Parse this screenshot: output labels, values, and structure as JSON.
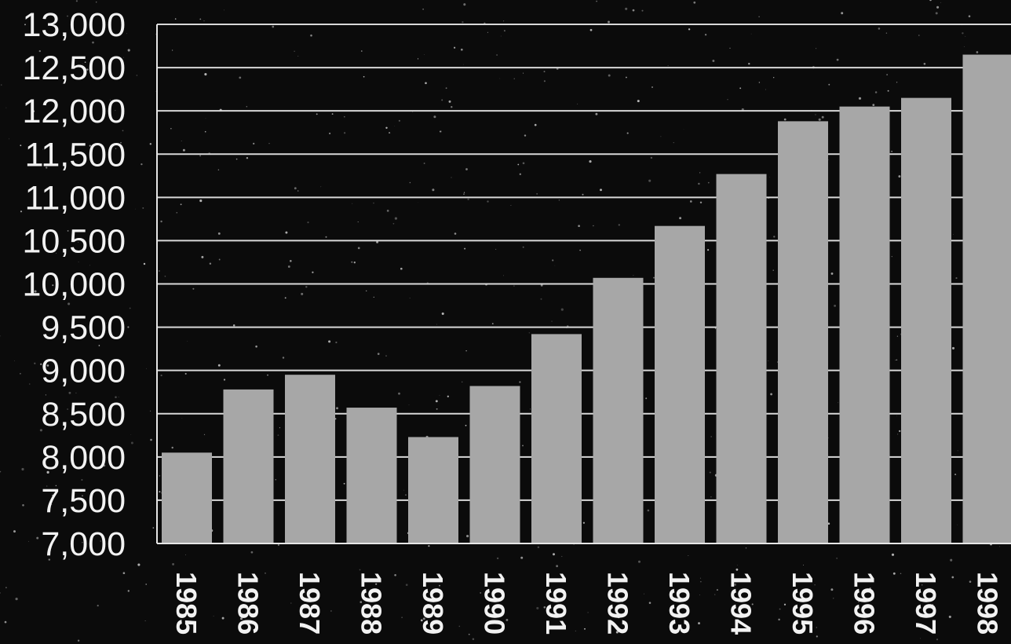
{
  "chart_data": {
    "type": "bar",
    "categories": [
      "1985",
      "1986",
      "1987",
      "1988",
      "1989",
      "1990",
      "1991",
      "1992",
      "1993",
      "1994",
      "1995",
      "1996",
      "1997",
      "1998"
    ],
    "values": [
      8050,
      8780,
      8950,
      8570,
      8230,
      8820,
      9420,
      10070,
      10670,
      11270,
      11880,
      12050,
      12150,
      12650
    ],
    "ylim": [
      7000,
      13000
    ],
    "yticks": [
      7000,
      7500,
      8000,
      8500,
      9000,
      9500,
      10000,
      10500,
      11000,
      11500,
      12000,
      12500,
      13000
    ],
    "ytick_labels": [
      "7,000",
      "7,500",
      "8,000",
      "8,500",
      "9,000",
      "9,500",
      "10,000",
      "10,500",
      "11,000",
      "11,500",
      "12,000",
      "12,500",
      "13,000"
    ],
    "grid": true,
    "colors": {
      "bar": "#a7a7a7",
      "background": "#0b0b0b",
      "text": "#f2f2f2",
      "grid": "#d8d8d8"
    }
  }
}
